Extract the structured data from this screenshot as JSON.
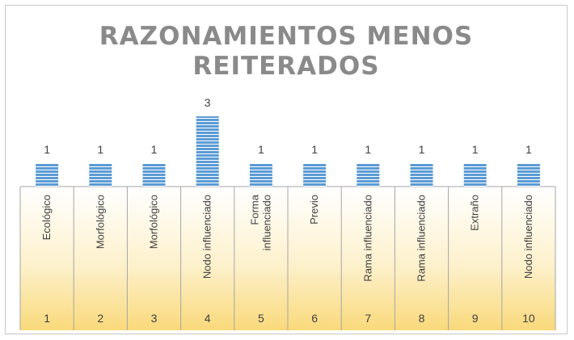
{
  "chart_data": {
    "type": "bar",
    "title": "RAZONAMIENTOS MENOS REITERADOS",
    "title_lines": [
      "RAZONAMIENTOS MENOS",
      "REITERADOS"
    ],
    "xlabel": "",
    "ylabel": "",
    "ylim": [
      0,
      3
    ],
    "grid": false,
    "legend": "none",
    "categories": [
      "Ecológico",
      "Morfológico",
      "Morfológico",
      "Nodo influenciado",
      "Forma influenciado",
      "Previo",
      "Rama influenciado",
      "Rama influenciado",
      "Extraño",
      "Nodo influenciado"
    ],
    "category_lines": [
      [
        "Ecológico"
      ],
      [
        "Morfológico"
      ],
      [
        "Morfológico"
      ],
      [
        "Nodo influenciado"
      ],
      [
        "Forma",
        "influenciado"
      ],
      [
        "Previo"
      ],
      [
        "Rama influenciado"
      ],
      [
        "Rama influenciado"
      ],
      [
        "Extraño"
      ],
      [
        "Nodo influenciado"
      ]
    ],
    "indices": [
      "1",
      "2",
      "3",
      "4",
      "5",
      "6",
      "7",
      "8",
      "9",
      "10"
    ],
    "values": [
      1,
      1,
      1,
      3,
      1,
      1,
      1,
      1,
      1,
      1
    ],
    "colors": {
      "bar": "#5b9bd5",
      "bar_stripe": "#ffffff",
      "table_top": "#ffffff",
      "table_bottom": "#f9d97a",
      "table_border": "#a6a6a6",
      "title": "#8a8a8a"
    }
  }
}
